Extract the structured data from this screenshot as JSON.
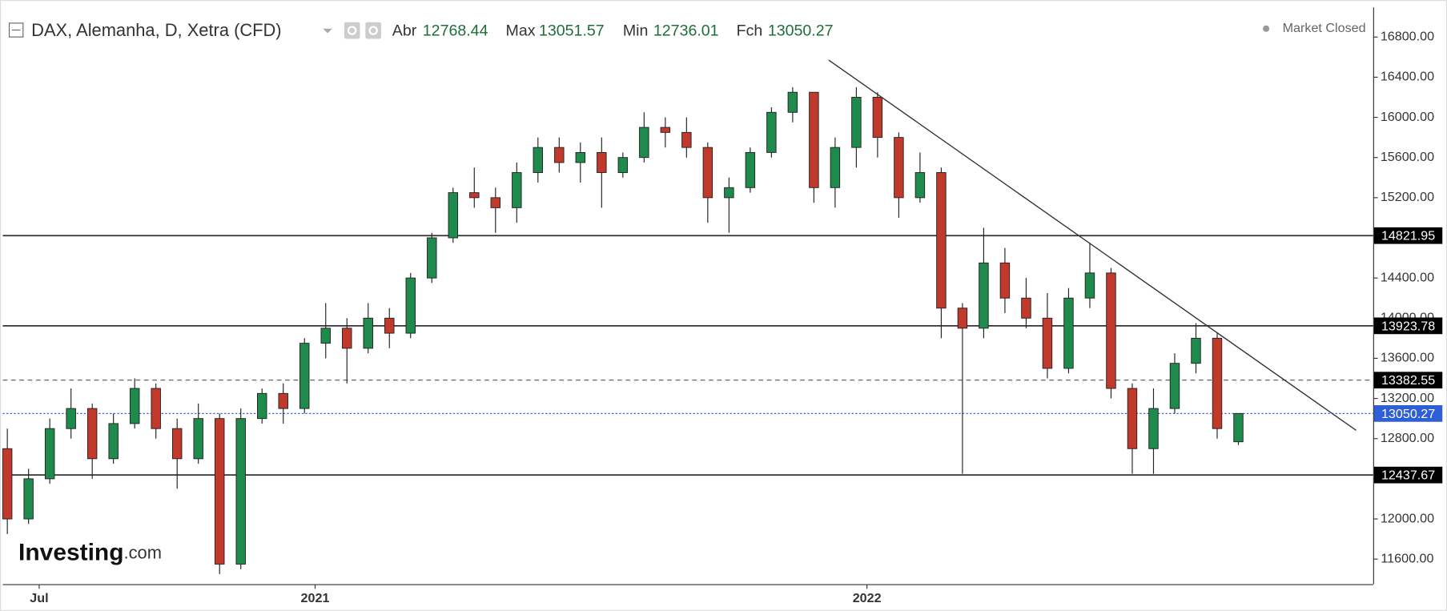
{
  "header": {
    "title": "DAX, Alemanha, D, Xetra (CFD)",
    "stats": [
      {
        "label": "Abr",
        "value": 12768.44
      },
      {
        "label": "Max",
        "value": 13051.57
      },
      {
        "label": "Min",
        "value": 12736.01
      },
      {
        "label": "Fch",
        "value": 13050.27
      }
    ],
    "status": "Market Closed"
  },
  "watermark": {
    "brand": "Investing",
    "suffix": ".com"
  },
  "chart_data": {
    "type": "candlestick",
    "up_color": "#1e8a4c",
    "down_color": "#c0392b",
    "x": [
      0,
      2,
      4,
      6,
      8,
      10,
      12,
      14,
      16,
      18,
      20,
      22,
      24,
      26,
      28,
      30,
      32,
      34,
      36,
      38,
      40,
      42,
      44,
      46,
      48,
      50,
      52,
      54,
      56,
      58,
      60,
      62,
      64,
      66,
      68,
      70,
      72,
      74,
      76,
      78,
      80,
      82,
      84,
      86,
      88,
      90,
      92,
      94,
      96,
      98,
      100,
      102,
      104,
      106,
      108,
      110,
      112,
      114,
      116
    ],
    "open": [
      12700,
      12000,
      12400,
      12900,
      13100,
      12600,
      12950,
      13300,
      12900,
      12600,
      13000,
      11550,
      13000,
      13250,
      13100,
      13750,
      13900,
      13700,
      14000,
      13850,
      14400,
      14800,
      15250,
      15200,
      15100,
      15450,
      15700,
      15550,
      15650,
      15450,
      15600,
      15900,
      15850,
      15700,
      15200,
      15300,
      15650,
      16050,
      16250,
      15300,
      15700,
      16200,
      15800,
      15200,
      15450,
      14100,
      13900,
      14550,
      14200,
      14000,
      13500,
      14200,
      14450,
      13300,
      12700,
      13100,
      13550,
      13800,
      12768.44
    ],
    "high": [
      12900,
      12500,
      13000,
      13300,
      13150,
      13050,
      13400,
      13350,
      13000,
      13150,
      13050,
      13100,
      13300,
      13350,
      13800,
      14150,
      14000,
      14150,
      14100,
      14450,
      14850,
      15300,
      15500,
      15300,
      15550,
      15800,
      15800,
      15750,
      15800,
      15650,
      16050,
      16000,
      16000,
      15750,
      15400,
      15700,
      16100,
      16300,
      16250,
      15800,
      16300,
      16250,
      15850,
      15650,
      15500,
      14150,
      14900,
      14700,
      14400,
      14250,
      14300,
      14750,
      14500,
      13350,
      13300,
      13650,
      13950,
      13850,
      13051.57
    ],
    "low": [
      11850,
      11950,
      12350,
      12800,
      12400,
      12550,
      12900,
      12800,
      12300,
      12550,
      11450,
      11500,
      12950,
      12950,
      13050,
      13600,
      13350,
      13650,
      13700,
      13800,
      14350,
      14750,
      15100,
      14850,
      14950,
      15350,
      15450,
      15350,
      15100,
      15400,
      15550,
      15700,
      15600,
      14950,
      14850,
      15250,
      15600,
      15950,
      15150,
      15100,
      15500,
      15600,
      15000,
      15150,
      13800,
      12450,
      13800,
      14050,
      13900,
      13400,
      13450,
      14100,
      13200,
      12450,
      12450,
      13050,
      13450,
      12800,
      12736.01
    ],
    "close": [
      12000,
      12400,
      12900,
      13100,
      12600,
      12950,
      13300,
      12900,
      12600,
      13000,
      11550,
      13000,
      13250,
      13100,
      13750,
      13900,
      13700,
      14000,
      13850,
      14400,
      14800,
      15250,
      15200,
      15100,
      15450,
      15700,
      15550,
      15650,
      15450,
      15600,
      15900,
      15850,
      15700,
      15200,
      15300,
      15650,
      16050,
      16250,
      15300,
      15700,
      16200,
      15800,
      15200,
      15450,
      14100,
      13900,
      14550,
      14200,
      14000,
      13500,
      14200,
      14450,
      13300,
      12700,
      13100,
      13550,
      13800,
      12900,
      13050.27
    ],
    "xlim": [
      -0.43,
      128.7
    ],
    "xticks": [
      {
        "value": 3,
        "label": "Jul"
      },
      {
        "value": 29,
        "label": "2021"
      },
      {
        "value": 81,
        "label": "2022"
      }
    ],
    "ylim": [
      11350,
      17095
    ],
    "yticks": [
      {
        "value": 11600,
        "label": "11600.00"
      },
      {
        "value": 12000,
        "label": "12000.00"
      },
      {
        "value": 12400,
        "label": "12400.00"
      },
      {
        "value": 12800,
        "label": "12800.00"
      },
      {
        "value": 13200,
        "label": "13200.00"
      },
      {
        "value": 13600,
        "label": "13600.00"
      },
      {
        "value": 14000,
        "label": "14000.00"
      },
      {
        "value": 14400,
        "label": "14400.00"
      },
      {
        "value": 14800,
        "label": "14800.00"
      },
      {
        "value": 15200,
        "label": "15200.00"
      },
      {
        "value": 15600,
        "label": "15600.00"
      },
      {
        "value": 16000,
        "label": "16000.00"
      },
      {
        "value": 16400,
        "label": "16400.00"
      },
      {
        "value": 16800,
        "label": "16800.00"
      }
    ],
    "levels": [
      {
        "value": 14821.95,
        "color": "#333333",
        "style": "solid",
        "box": "#000000"
      },
      {
        "value": 13923.78,
        "color": "#333333",
        "style": "solid",
        "box": "#000000"
      },
      {
        "value": 13382.55,
        "color": "#555555",
        "style": "dashed",
        "box": "#000000"
      },
      {
        "value": 13050.27,
        "color": "#3366dd",
        "style": "dotted",
        "box": "#2f5fd8"
      },
      {
        "value": 12437.67,
        "color": "#333333",
        "style": "solid",
        "box": "#000000"
      }
    ],
    "trendline": {
      "x": [
        77.4,
        127.1
      ],
      "y": [
        16570,
        12882
      ],
      "color": "#333333"
    }
  }
}
